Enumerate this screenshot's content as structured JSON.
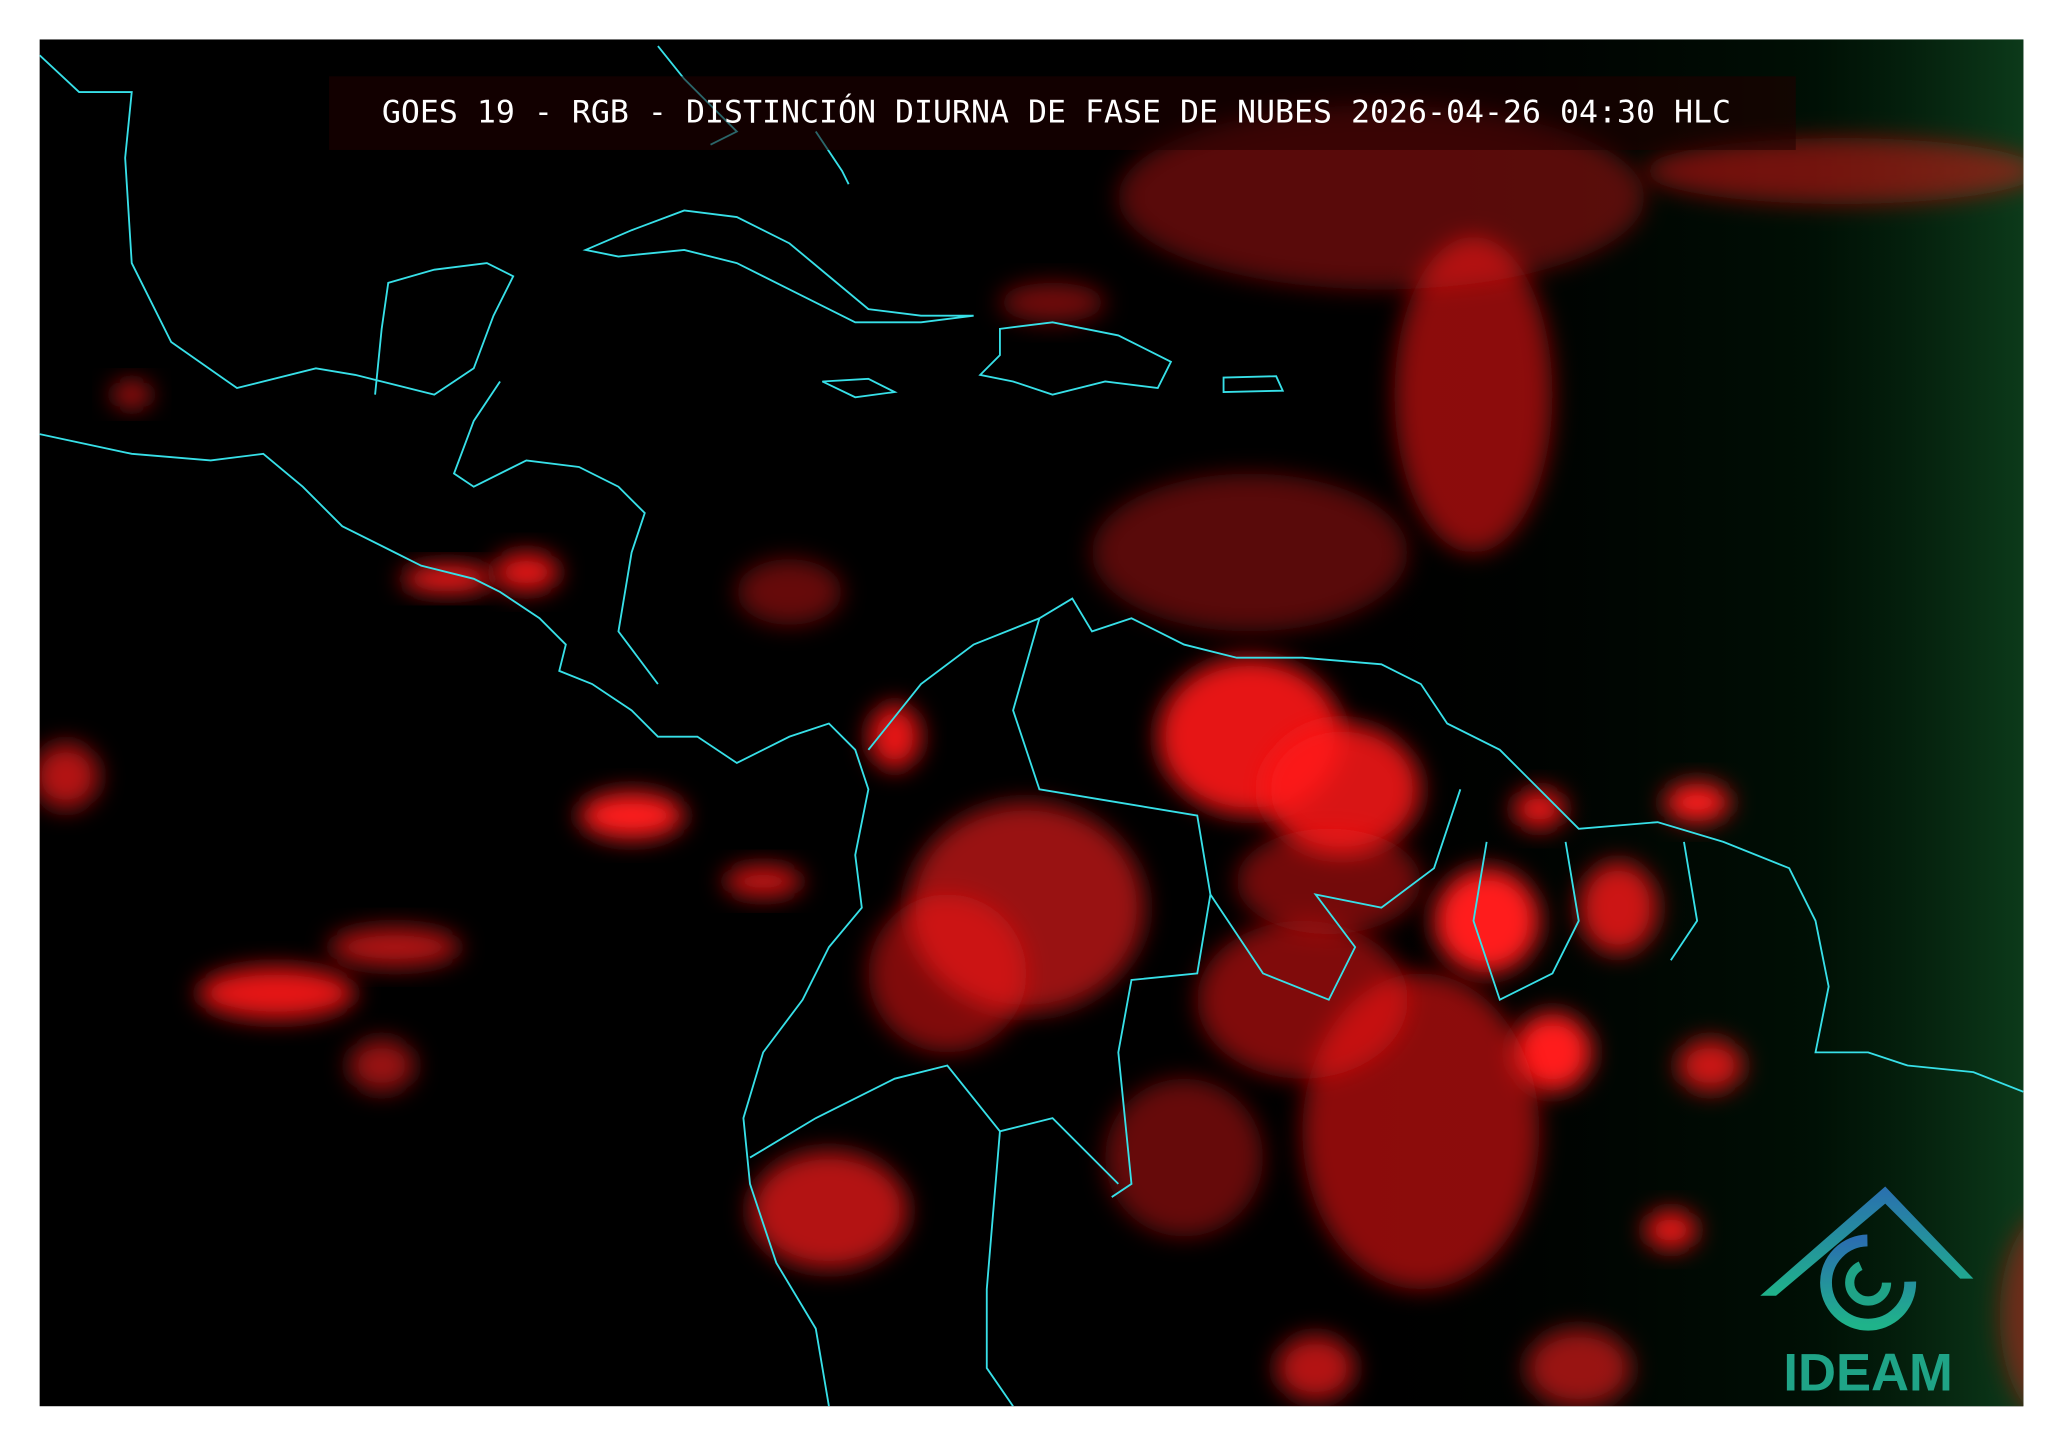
{
  "header": {
    "title": "GOES 19 - RGB - DISTINCIÓN DIURNA DE FASE DE NUBES 2026-04-26 04:30 HLC"
  },
  "logo": {
    "text": "IDEAM"
  }
}
